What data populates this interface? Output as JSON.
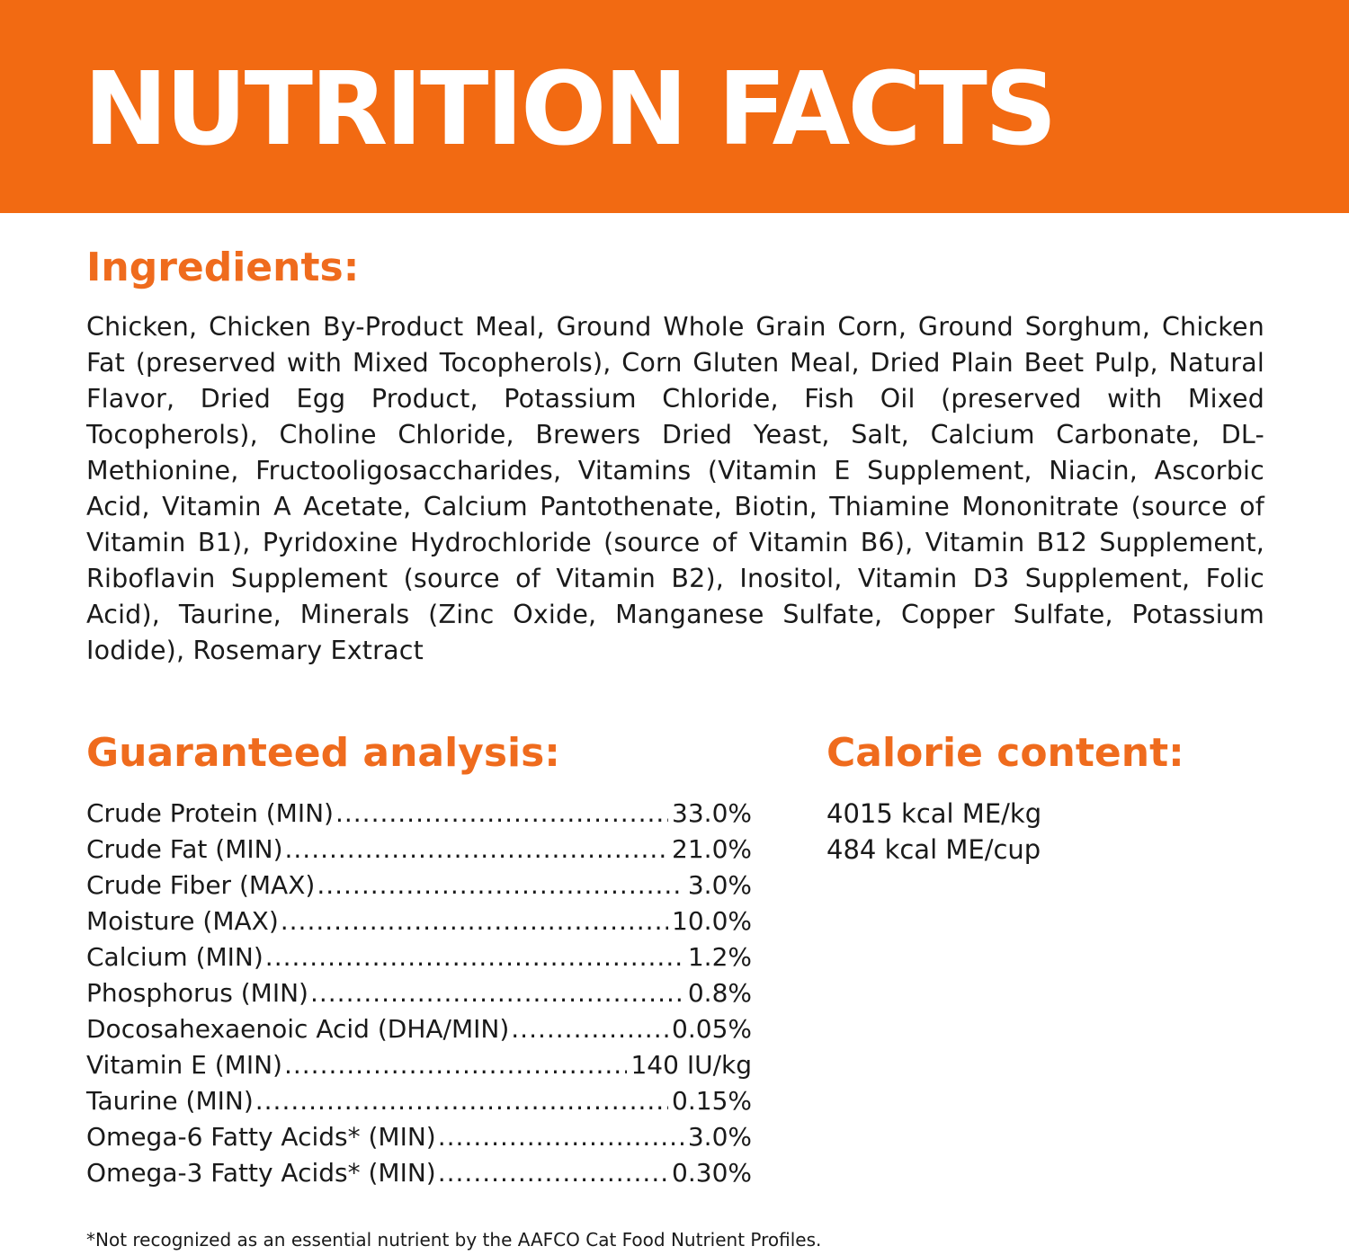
{
  "banner": {
    "title": "NUTRITION FACTS",
    "color": "#f26a12"
  },
  "ingredients": {
    "heading": "Ingredients:",
    "text": "Chicken, Chicken By-Product Meal, Ground Whole Grain Corn, Ground Sorghum, Chicken Fat (preserved with Mixed Tocopherols), Corn Gluten Meal, Dried Plain Beet Pulp, Natural Flavor, Dried Egg Product, Potassium Chloride, Fish Oil (preserved with Mixed Tocopherols), Choline Chloride, Brewers Dried Yeast, Salt, Calcium Carbonate, DL-Methionine, Fructooligosaccharides, Vitamins (Vitamin E Supplement, Niacin, Ascorbic Acid, Vitamin A Acetate, Calcium Pantothenate, Biotin, Thiamine Mononitrate (source of Vitamin B1), Pyridoxine Hydrochloride (source of Vitamin B6), Vitamin B12 Supplement, Riboflavin Supplement (source of Vitamin B2), Inositol, Vitamin D3 Supplement, Folic Acid), Taurine, Minerals (Zinc Oxide, Manganese Sulfate, Copper Sulfate, Potassium Iodide), Rosemary Extract"
  },
  "analysis": {
    "heading": "Guaranteed analysis:",
    "rows": [
      {
        "name": "Crude Protein (MIN)",
        "value": "33.0%"
      },
      {
        "name": "Crude Fat (MIN)",
        "value": "21.0%"
      },
      {
        "name": "Crude Fiber (MAX)",
        "value": "3.0%"
      },
      {
        "name": "Moisture (MAX)",
        "value": "10.0%"
      },
      {
        "name": "Calcium (MIN)",
        "value": "1.2%"
      },
      {
        "name": "Phosphorus (MIN)",
        "value": "0.8%"
      },
      {
        "name": "Docosahexaenoic Acid (DHA/MIN)",
        "value": "0.05%"
      },
      {
        "name": "Vitamin E (MIN)",
        "value": "140 IU/kg"
      },
      {
        "name": "Taurine (MIN)",
        "value": "0.15%"
      },
      {
        "name": "Omega-6 Fatty Acids* (MIN)",
        "value": "3.0%"
      },
      {
        "name": "Omega-3 Fatty Acids* (MIN)",
        "value": "0.30%"
      }
    ]
  },
  "calorie": {
    "heading": "Calorie content:",
    "items": [
      "4015 kcal ME/kg",
      "484 kcal ME/cup"
    ]
  },
  "footnote": "*Not recognized as an essential nutrient by the AAFCO Cat Food Nutrient Profiles.",
  "accent_color": "#ef6b1d"
}
